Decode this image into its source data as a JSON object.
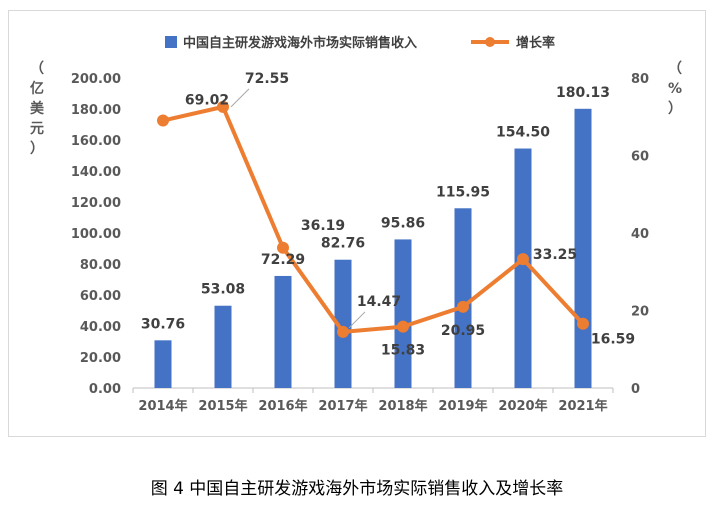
{
  "caption": "图 4 中国自主研发游戏海外市场实际销售收入及增长率",
  "chart_data": {
    "type": "bar",
    "categories": [
      "2014年",
      "2015年",
      "2016年",
      "2017年",
      "2018年",
      "2019年",
      "2020年",
      "2021年"
    ],
    "series": [
      {
        "name": "中国自主研发游戏海外市场实际销售收入",
        "type": "bar",
        "axis": "left",
        "color": "#4472c4",
        "values": [
          30.76,
          53.08,
          72.29,
          82.76,
          95.86,
          115.95,
          154.5,
          180.13
        ],
        "labels": [
          "30.76",
          "53.08",
          "72.29",
          "82.76",
          "95.86",
          "115.95",
          "154.50",
          "180.13"
        ]
      },
      {
        "name": "增长率",
        "type": "line",
        "axis": "right",
        "color": "#ed7d31",
        "values": [
          69.02,
          72.55,
          36.19,
          14.47,
          15.83,
          20.95,
          33.25,
          16.59
        ],
        "labels": [
          "69.02",
          "72.55",
          "36.19",
          "14.47",
          "15.83",
          "20.95",
          "33.25",
          "16.59"
        ]
      }
    ],
    "y_left": {
      "unit_chars": [
        "（",
        "亿",
        "美",
        "元",
        "）"
      ],
      "ylim": [
        0,
        200
      ],
      "ticks": [
        "0.00",
        "20.00",
        "40.00",
        "60.00",
        "80.00",
        "100.00",
        "120.00",
        "140.00",
        "160.00",
        "180.00",
        "200.00"
      ]
    },
    "y_right": {
      "unit_chars": [
        "（",
        "%",
        "）"
      ],
      "ylim": [
        0,
        80
      ],
      "ticks": [
        "0",
        "20",
        "40",
        "60",
        "80"
      ]
    },
    "legend": "top",
    "grid": false
  }
}
